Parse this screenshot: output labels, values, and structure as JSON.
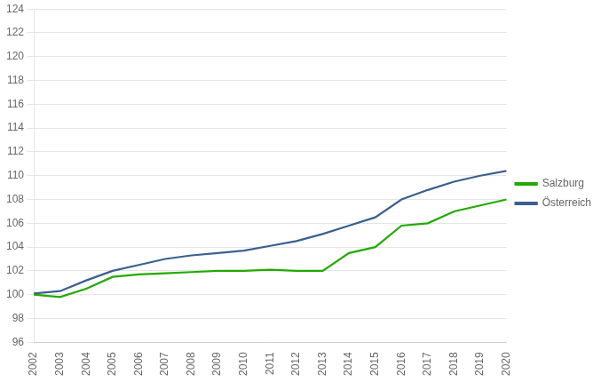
{
  "chart_data": {
    "type": "line",
    "x": [
      2002,
      2003,
      2004,
      2005,
      2006,
      2007,
      2008,
      2009,
      2010,
      2011,
      2012,
      2013,
      2014,
      2015,
      2016,
      2017,
      2018,
      2019,
      2020
    ],
    "series": [
      {
        "name": "Salzburg",
        "color": "#22aa00",
        "values": [
          100.0,
          99.8,
          100.5,
          101.5,
          101.7,
          101.8,
          101.9,
          102.0,
          102.0,
          102.1,
          102.0,
          102.0,
          103.5,
          104.0,
          105.8,
          106.0,
          107.0,
          107.5,
          108.0
        ]
      },
      {
        "name": "Österreich",
        "color": "#3a6090",
        "values": [
          100.1,
          100.3,
          101.2,
          102.0,
          102.5,
          103.0,
          103.3,
          103.5,
          103.7,
          104.1,
          104.5,
          105.1,
          105.8,
          106.5,
          108.0,
          108.8,
          109.5,
          110.0,
          110.4
        ]
      }
    ],
    "xlim": [
      2002,
      2020
    ],
    "xticks": [
      2002,
      2003,
      2004,
      2005,
      2006,
      2007,
      2008,
      2009,
      2010,
      2011,
      2012,
      2013,
      2014,
      2015,
      2016,
      2017,
      2018,
      2019,
      2020
    ],
    "ylim": [
      96,
      124
    ],
    "yticks": [
      96,
      98,
      100,
      102,
      104,
      106,
      108,
      110,
      112,
      114,
      116,
      118,
      120,
      122,
      124
    ],
    "grid": "y",
    "legend": "right"
  }
}
